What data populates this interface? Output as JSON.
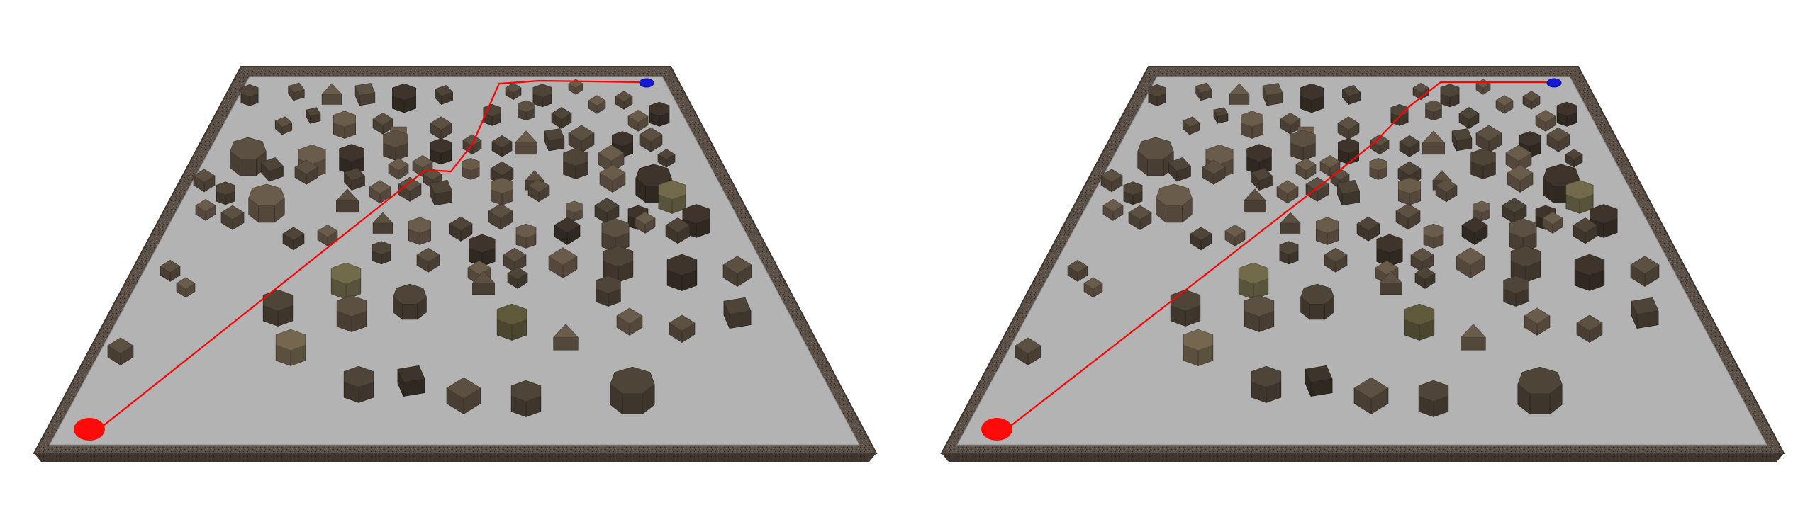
{
  "colors": {
    "background": "#ffffff",
    "floor": "#b3b3b3",
    "wall_top": "#5a5047",
    "wall_side": "#3e362f",
    "start_marker": "#ff0a0a",
    "goal_marker": "#1818d8",
    "path": "#ff0000",
    "obstacle_palette": [
      "#4f4438",
      "#5c5042",
      "#6a5c4b",
      "#3e342b",
      "#716b4c",
      "#5f5a3c",
      "#756650"
    ]
  },
  "panels": [
    {
      "id": "left",
      "path_variant": "detour"
    },
    {
      "id": "right",
      "path_variant": "direct"
    }
  ]
}
